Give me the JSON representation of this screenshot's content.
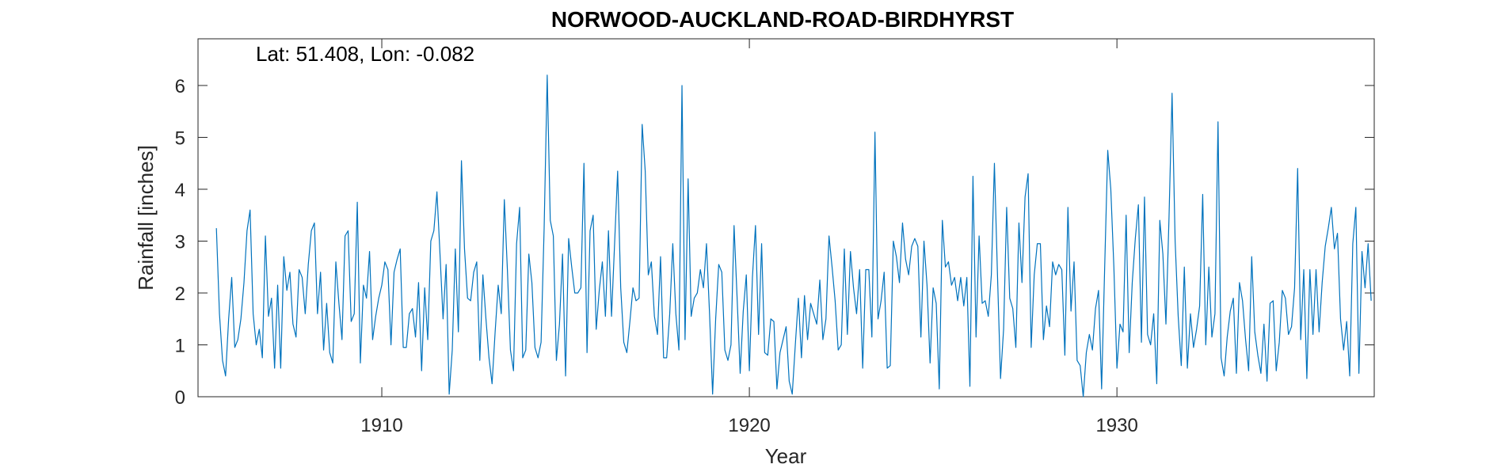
{
  "chart_data": {
    "type": "line",
    "title": "NORWOOD-AUCKLAND-ROAD-BIRDHYRST",
    "annotation": "Lat: 51.408, Lon: -0.082",
    "xlabel": "Year",
    "ylabel": "Rainfall [inches]",
    "xlim": [
      1905.0,
      1937.0
    ],
    "ylim": [
      0,
      6.9
    ],
    "x_ticks": [
      1910,
      1920,
      1930
    ],
    "y_ticks": [
      0,
      1,
      2,
      3,
      4,
      5,
      6
    ],
    "grid": false,
    "x_start": 1905.5,
    "x_step_months": 1,
    "series": [
      {
        "color": "#0072BD",
        "values": [
          3.25,
          1.6,
          0.7,
          0.4,
          1.5,
          2.3,
          0.95,
          1.1,
          1.5,
          2.2,
          3.2,
          3.6,
          1.6,
          1.0,
          1.3,
          0.75,
          3.1,
          1.55,
          1.9,
          0.55,
          2.15,
          0.55,
          2.7,
          2.05,
          2.4,
          1.4,
          1.15,
          2.45,
          2.3,
          1.6,
          2.55,
          3.2,
          3.35,
          1.6,
          2.4,
          0.9,
          1.8,
          0.85,
          0.65,
          2.6,
          1.8,
          1.1,
          3.1,
          3.2,
          1.45,
          1.6,
          3.75,
          0.65,
          2.15,
          1.9,
          2.8,
          1.1,
          1.55,
          1.9,
          2.15,
          2.6,
          2.45,
          1.0,
          2.4,
          2.65,
          2.85,
          0.95,
          0.95,
          1.6,
          1.7,
          1.15,
          2.2,
          0.5,
          2.1,
          1.1,
          3.0,
          3.2,
          3.95,
          2.75,
          1.5,
          2.55,
          0.05,
          0.9,
          2.85,
          1.25,
          4.55,
          2.85,
          1.9,
          1.85,
          2.4,
          2.6,
          0.7,
          2.35,
          1.5,
          0.75,
          0.25,
          1.25,
          2.15,
          1.6,
          3.8,
          2.45,
          0.9,
          0.5,
          2.95,
          3.65,
          0.75,
          0.9,
          2.75,
          2.2,
          0.95,
          0.75,
          1.05,
          3.25,
          6.2,
          3.4,
          3.1,
          0.7,
          1.4,
          2.75,
          0.4,
          3.05,
          2.5,
          2.0,
          2.0,
          2.1,
          4.5,
          0.85,
          3.2,
          3.5,
          1.3,
          2.05,
          2.6,
          1.55,
          3.2,
          1.55,
          2.95,
          4.35,
          2.1,
          1.05,
          0.85,
          1.45,
          2.1,
          1.85,
          1.9,
          5.25,
          4.35,
          2.35,
          2.6,
          1.55,
          1.2,
          2.7,
          0.75,
          0.75,
          1.6,
          2.95,
          1.6,
          0.9,
          6.0,
          1.1,
          4.2,
          1.55,
          1.9,
          2.0,
          2.45,
          2.1,
          2.95,
          1.6,
          0.05,
          1.5,
          2.55,
          2.4,
          0.9,
          0.7,
          1.0,
          3.3,
          1.9,
          0.45,
          1.65,
          2.35,
          0.5,
          2.3,
          3.3,
          1.2,
          2.95,
          0.85,
          0.8,
          1.5,
          1.45,
          0.15,
          0.85,
          1.1,
          1.35,
          0.3,
          0.05,
          1.0,
          1.9,
          0.75,
          1.95,
          1.1,
          1.8,
          1.6,
          1.4,
          2.25,
          1.1,
          1.5,
          3.1,
          2.5,
          1.85,
          0.9,
          1.0,
          2.85,
          1.2,
          2.8,
          2.1,
          1.6,
          2.45,
          0.55,
          2.45,
          2.45,
          1.15,
          5.1,
          1.5,
          1.85,
          2.4,
          0.55,
          0.6,
          3.0,
          2.7,
          2.2,
          3.35,
          2.65,
          2.35,
          2.9,
          3.05,
          2.9,
          1.15,
          3.0,
          2.15,
          0.65,
          2.1,
          1.8,
          0.15,
          3.4,
          2.5,
          2.6,
          2.15,
          2.3,
          1.85,
          2.3,
          1.75,
          2.3,
          0.2,
          4.25,
          1.15,
          3.1,
          1.8,
          1.85,
          1.55,
          2.35,
          4.5,
          2.35,
          0.35,
          1.3,
          3.65,
          1.9,
          1.7,
          0.95,
          3.35,
          2.2,
          3.85,
          4.3,
          0.95,
          2.35,
          2.95,
          2.95,
          1.1,
          1.75,
          1.35,
          2.6,
          2.35,
          2.55,
          2.45,
          0.8,
          3.65,
          1.65,
          2.6,
          0.7,
          0.6,
          0.0,
          0.85,
          1.2,
          0.9,
          1.7,
          2.05,
          0.15,
          2.5,
          4.75,
          4.0,
          2.5,
          0.55,
          1.4,
          1.25,
          3.5,
          0.85,
          2.2,
          3.05,
          3.7,
          1.05,
          3.85,
          1.2,
          1.0,
          1.6,
          0.25,
          3.4,
          2.75,
          1.4,
          3.45,
          5.85,
          3.0,
          1.55,
          0.6,
          2.5,
          0.55,
          1.6,
          0.95,
          1.3,
          1.75,
          3.9,
          1.0,
          2.5,
          1.15,
          1.6,
          5.3,
          0.75,
          0.4,
          1.15,
          1.65,
          1.9,
          0.45,
          2.2,
          1.85,
          1.1,
          0.5,
          2.7,
          1.25,
          0.8,
          0.45,
          1.4,
          0.3,
          1.8,
          1.85,
          0.5,
          1.05,
          2.05,
          1.9,
          1.2,
          1.35,
          2.1,
          4.4,
          1.1,
          2.45,
          0.35,
          2.45,
          1.2,
          2.45,
          1.25,
          2.2,
          2.9,
          3.25,
          3.65,
          2.85,
          3.15,
          1.5,
          0.9,
          1.45,
          0.4,
          2.95,
          3.65,
          0.45,
          2.8,
          2.1,
          2.95,
          1.85
        ]
      }
    ]
  }
}
